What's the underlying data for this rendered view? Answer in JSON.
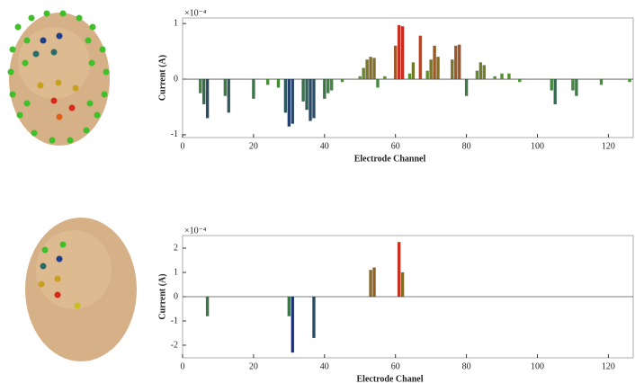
{
  "chart_data": [
    {
      "type": "bar",
      "xlabel": "Electrode Channel",
      "ylabel": "Current (A)",
      "y_multiplier": "×10⁻⁴",
      "x": [
        5,
        6,
        7,
        12,
        13,
        20,
        24,
        27,
        29,
        30,
        31,
        34,
        35,
        36,
        37,
        40,
        41,
        42,
        45,
        50,
        51,
        52,
        53,
        54,
        55,
        57,
        60,
        61,
        62,
        64,
        65,
        67,
        69,
        70,
        71,
        72,
        76,
        77,
        78,
        80,
        83,
        84,
        85,
        88,
        90,
        92,
        95,
        104,
        105,
        110,
        111,
        118,
        126
      ],
      "values": [
        -0.25,
        -0.45,
        -0.7,
        -0.3,
        -0.6,
        -0.35,
        -0.1,
        -0.15,
        -0.6,
        -0.85,
        -0.8,
        -0.4,
        -0.55,
        -0.75,
        -0.7,
        -0.35,
        -0.25,
        -0.2,
        -0.05,
        0.05,
        0.2,
        0.35,
        0.4,
        0.38,
        -0.15,
        0.05,
        0.6,
        0.97,
        0.95,
        0.1,
        0.3,
        0.78,
        0.15,
        0.35,
        0.6,
        0.4,
        0.35,
        0.6,
        0.62,
        -0.3,
        0.15,
        0.3,
        0.25,
        0.05,
        0.1,
        0.1,
        -0.05,
        -0.2,
        -0.45,
        -0.2,
        -0.3,
        -0.1,
        -0.05
      ],
      "colormap": [
        "#1c2f7a",
        "#4aa02c",
        "#d42a1e"
      ],
      "xlim": [
        0,
        127
      ],
      "xticks": [
        0,
        20,
        40,
        60,
        80,
        100,
        120
      ],
      "ylim": [
        -1.05,
        1.1
      ],
      "yticks": [
        -1,
        0,
        1
      ]
    },
    {
      "type": "bar",
      "xlabel": "Electrode Chanel",
      "ylabel": "Current (A)",
      "y_multiplier": "×10⁻⁴",
      "x": [
        7,
        30,
        31,
        37,
        53,
        54,
        61,
        62
      ],
      "values": [
        -0.8,
        -0.8,
        -2.3,
        -1.7,
        1.1,
        1.2,
        2.25,
        1.0
      ],
      "colormap": [
        "#1c2f7a",
        "#4aa02c",
        "#d42a1e"
      ],
      "xlim": [
        0,
        127
      ],
      "xticks": [
        0,
        20,
        40,
        60,
        80,
        100,
        120
      ],
      "ylim": [
        -2.52,
        2.52
      ],
      "yticks": [
        -2,
        -1,
        0,
        1,
        2
      ]
    }
  ]
}
